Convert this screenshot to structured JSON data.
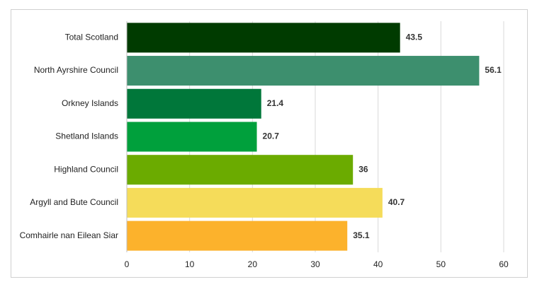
{
  "chart_data": {
    "type": "bar",
    "orientation": "horizontal",
    "categories": [
      "Total Scotland",
      "North Ayrshire Council",
      "Orkney Islands",
      "Shetland Islands",
      "Highland Council",
      "Argyll and Bute Council",
      "Comhairle nan Eilean Siar"
    ],
    "values": [
      43.5,
      56.1,
      21.4,
      20.7,
      36,
      40.7,
      35.1
    ],
    "colors": [
      "#003b00",
      "#3d8f6e",
      "#00773a",
      "#00a03c",
      "#6bab00",
      "#f5dc5a",
      "#fcb22c"
    ],
    "xlim": [
      0,
      60
    ],
    "xticks": [
      0,
      10,
      20,
      30,
      40,
      50,
      60
    ],
    "grid": true,
    "data_labels": true
  }
}
